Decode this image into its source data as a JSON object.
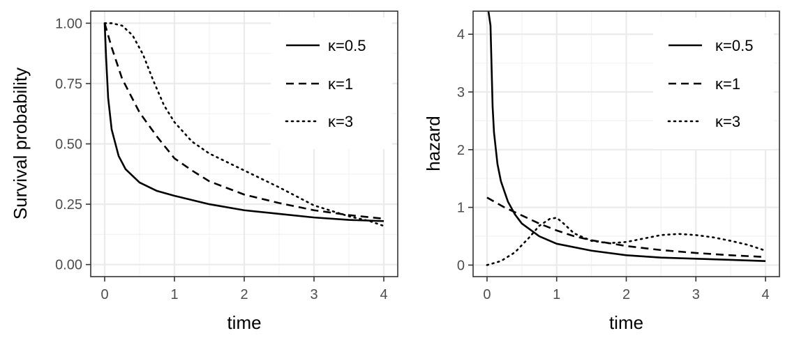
{
  "chart_data": [
    {
      "type": "line",
      "xlabel": "time",
      "ylabel": "Survival probability",
      "xlim": [
        -0.2,
        4.2
      ],
      "ylim": [
        -0.05,
        1.05
      ],
      "x_ticks": [
        0,
        1,
        2,
        3,
        4
      ],
      "x_tick_labels": [
        "0",
        "1",
        "2",
        "3",
        "4"
      ],
      "y_ticks": [
        0,
        0.25,
        0.5,
        0.75,
        1.0
      ],
      "y_tick_labels": [
        "0.00",
        "0.25",
        "0.50",
        "0.75",
        "1.00"
      ],
      "grid": true,
      "legend_position": "top-right",
      "series": [
        {
          "name": "κ=0.5",
          "line_style": "solid",
          "x": [
            0,
            0.02,
            0.05,
            0.1,
            0.2,
            0.3,
            0.5,
            0.75,
            1.0,
            1.5,
            2.0,
            2.5,
            3.0,
            3.5,
            4.0
          ],
          "y": [
            1.0,
            0.86,
            0.69,
            0.56,
            0.45,
            0.395,
            0.34,
            0.305,
            0.285,
            0.25,
            0.225,
            0.21,
            0.195,
            0.185,
            0.18
          ]
        },
        {
          "name": "κ=1",
          "line_style": "dashed",
          "x": [
            0,
            0.1,
            0.25,
            0.5,
            0.75,
            1.0,
            1.25,
            1.5,
            2.0,
            2.5,
            3.0,
            3.5,
            4.0
          ],
          "y": [
            1.0,
            0.9,
            0.77,
            0.63,
            0.53,
            0.44,
            0.39,
            0.345,
            0.29,
            0.255,
            0.225,
            0.205,
            0.19
          ]
        },
        {
          "name": "κ=3",
          "line_style": "dotted",
          "x": [
            0,
            0.1,
            0.25,
            0.4,
            0.55,
            0.7,
            0.85,
            1.0,
            1.25,
            1.5,
            2.0,
            2.5,
            3.0,
            3.5,
            3.8,
            4.0
          ],
          "y": [
            1.0,
            1.0,
            0.99,
            0.95,
            0.87,
            0.76,
            0.66,
            0.59,
            0.51,
            0.46,
            0.39,
            0.32,
            0.245,
            0.2,
            0.18,
            0.16
          ]
        }
      ]
    },
    {
      "type": "line",
      "xlabel": "time",
      "ylabel": "hazard",
      "xlim": [
        -0.2,
        4.2
      ],
      "ylim": [
        -0.2,
        4.4
      ],
      "x_ticks": [
        0,
        1,
        2,
        3,
        4
      ],
      "x_tick_labels": [
        "0",
        "1",
        "2",
        "3",
        "4"
      ],
      "y_ticks": [
        0,
        1,
        2,
        3,
        4
      ],
      "y_tick_labels": [
        "0",
        "1",
        "2",
        "3",
        "4"
      ],
      "grid": true,
      "legend_position": "top-right",
      "series": [
        {
          "name": "κ=0.5",
          "line_style": "solid",
          "x": [
            0.02,
            0.05,
            0.08,
            0.1,
            0.15,
            0.2,
            0.3,
            0.4,
            0.5,
            0.75,
            1.0,
            1.5,
            2.0,
            2.5,
            3.0,
            3.5,
            4.0
          ],
          "y": [
            4.4,
            4.15,
            2.75,
            2.3,
            1.75,
            1.45,
            1.1,
            0.88,
            0.72,
            0.5,
            0.37,
            0.25,
            0.17,
            0.13,
            0.11,
            0.09,
            0.07
          ]
        },
        {
          "name": "κ=1",
          "line_style": "dashed",
          "x": [
            0,
            0.25,
            0.5,
            0.75,
            1.0,
            1.25,
            1.5,
            2.0,
            2.5,
            3.0,
            3.5,
            4.0
          ],
          "y": [
            1.17,
            1.0,
            0.86,
            0.72,
            0.6,
            0.5,
            0.43,
            0.33,
            0.26,
            0.21,
            0.17,
            0.14
          ]
        },
        {
          "name": "κ=3",
          "line_style": "dotted",
          "x": [
            0,
            0.2,
            0.4,
            0.6,
            0.75,
            0.9,
            1.0,
            1.1,
            1.25,
            1.5,
            1.75,
            2.0,
            2.25,
            2.5,
            2.75,
            3.0,
            3.25,
            3.5,
            3.75,
            4.0
          ],
          "y": [
            0.0,
            0.07,
            0.22,
            0.47,
            0.68,
            0.8,
            0.82,
            0.72,
            0.55,
            0.42,
            0.38,
            0.4,
            0.46,
            0.52,
            0.54,
            0.52,
            0.48,
            0.42,
            0.35,
            0.25
          ]
        }
      ]
    }
  ]
}
